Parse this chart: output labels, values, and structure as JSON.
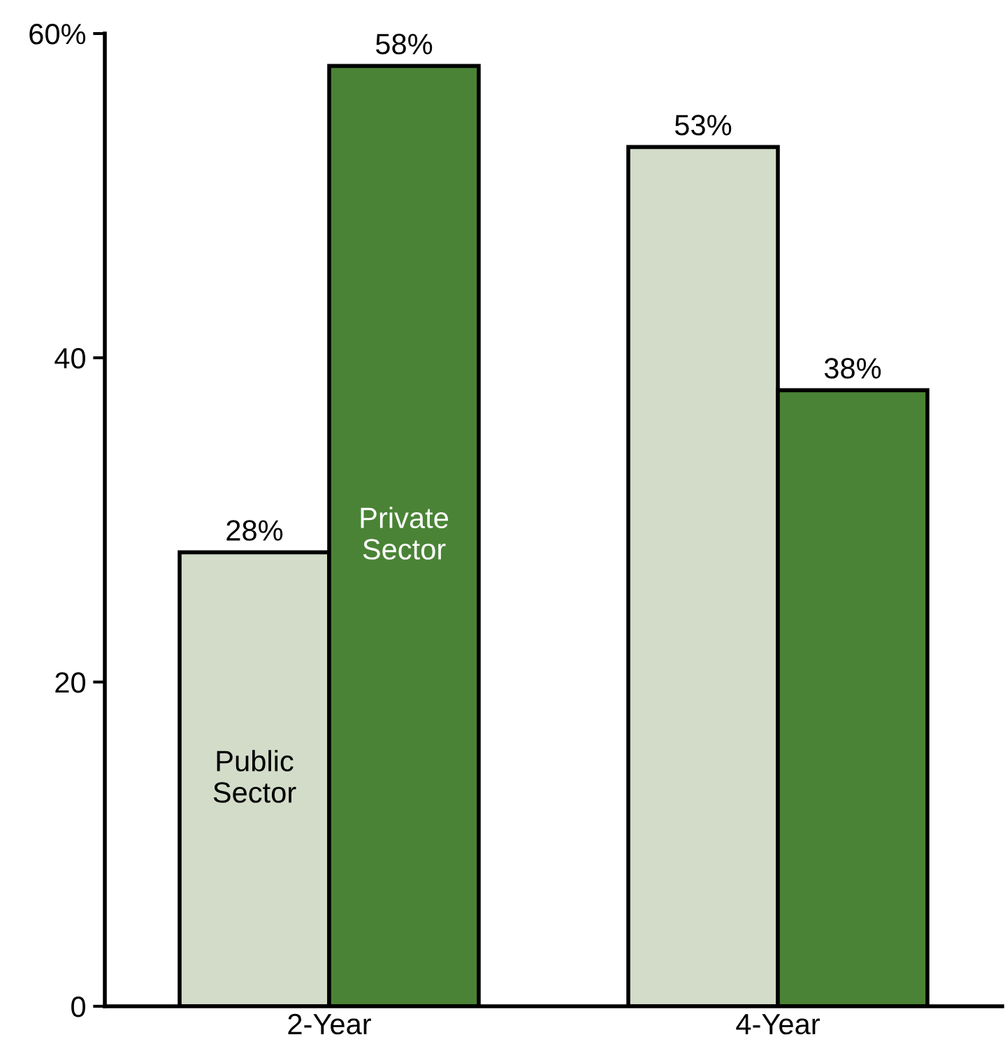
{
  "chart_data": {
    "type": "bar",
    "categories": [
      "2-Year",
      "4-Year"
    ],
    "series": [
      {
        "name": "Public\nSector",
        "color": "#d3dcc9",
        "values": [
          28,
          53
        ],
        "value_labels": [
          "28%",
          "53%"
        ]
      },
      {
        "name": "Private\nSector",
        "color": "#4a8336",
        "values": [
          58,
          38
        ],
        "value_labels": [
          "58%",
          "38%"
        ]
      }
    ],
    "ylim": [
      0,
      60
    ],
    "yticks": [
      0,
      20,
      40,
      {
        "value": 60,
        "label": "60%"
      }
    ],
    "grid": false,
    "legend": false
  }
}
